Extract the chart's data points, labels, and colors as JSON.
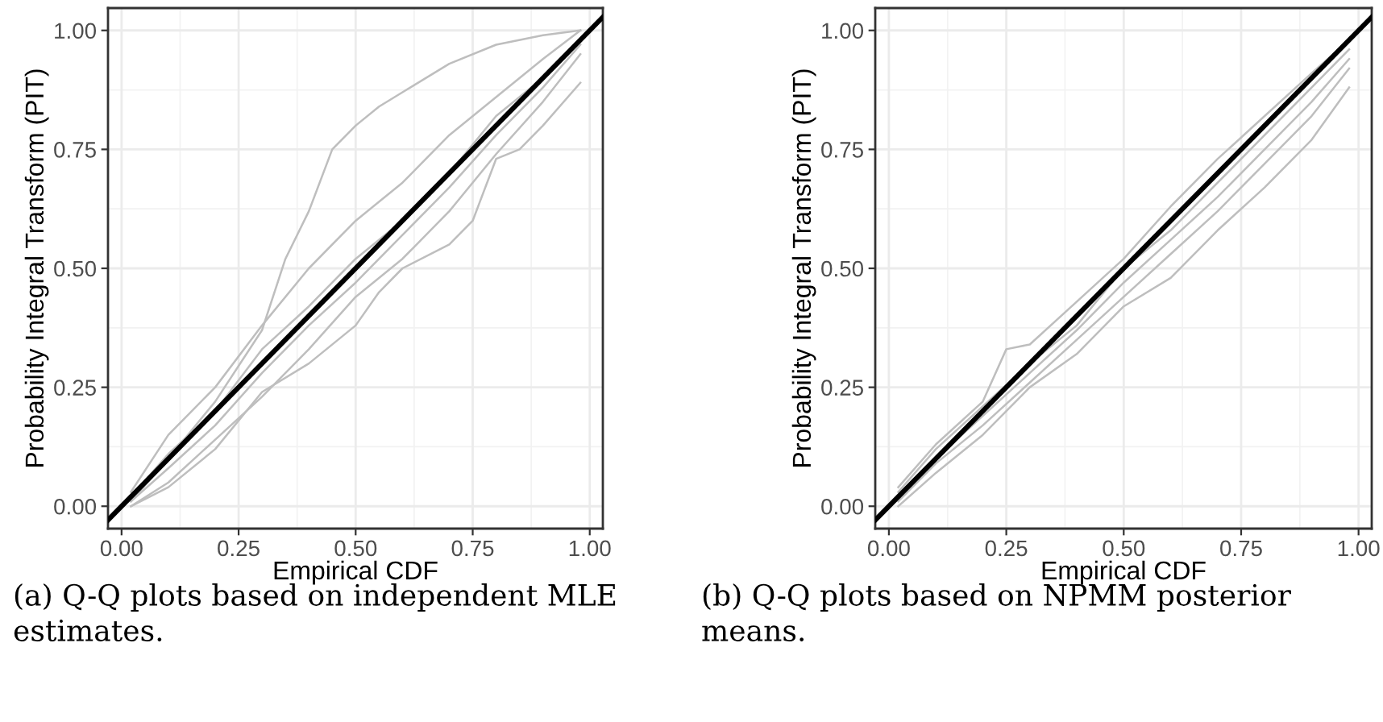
{
  "chart_data": [
    {
      "type": "line",
      "xlabel": "Empirical CDF",
      "ylabel": "Probability Integral Transform (PIT)",
      "annotations": [
        "(a) Q-Q plots based on independent MLE",
        "estimates."
      ],
      "xlim": [
        -0.029,
        1.028
      ],
      "ylim": [
        -0.047,
        1.047
      ],
      "xticks": [
        {
          "value": 0,
          "label": "0.00"
        },
        {
          "value": 0.25,
          "label": "0.25"
        },
        {
          "value": 0.5,
          "label": "0.50"
        },
        {
          "value": 0.75,
          "label": "0.75"
        },
        {
          "value": 1,
          "label": "1.00"
        }
      ],
      "yticks": [
        {
          "value": 0,
          "label": "0.00"
        },
        {
          "value": 0.25,
          "label": "0.25"
        },
        {
          "value": 0.5,
          "label": "0.50"
        },
        {
          "value": 0.75,
          "label": "0.75"
        },
        {
          "value": 1,
          "label": "1.00"
        }
      ],
      "grid": true,
      "marker": "none",
      "line_style": "solid",
      "series": [
        {
          "color": "#bebebe",
          "x": [
            0.02,
            0.1,
            0.2,
            0.3,
            0.35,
            0.4,
            0.45,
            0.5,
            0.55,
            0.6,
            0.7,
            0.8,
            0.9,
            0.98
          ],
          "values": [
            0.01,
            0.1,
            0.22,
            0.37,
            0.52,
            0.62,
            0.75,
            0.8,
            0.84,
            0.87,
            0.93,
            0.97,
            0.99,
            1.0
          ]
        },
        {
          "color": "#bebebe",
          "x": [
            0.02,
            0.1,
            0.2,
            0.3,
            0.4,
            0.5,
            0.55,
            0.6,
            0.7,
            0.75,
            0.8,
            0.85,
            0.9,
            0.98
          ],
          "values": [
            0.0,
            0.04,
            0.12,
            0.24,
            0.3,
            0.38,
            0.45,
            0.5,
            0.55,
            0.6,
            0.73,
            0.75,
            0.8,
            0.89
          ]
        },
        {
          "color": "#bebebe",
          "x": [
            0.02,
            0.1,
            0.2,
            0.3,
            0.4,
            0.5,
            0.6,
            0.7,
            0.8,
            0.9,
            0.98
          ],
          "values": [
            0.03,
            0.15,
            0.25,
            0.38,
            0.5,
            0.6,
            0.68,
            0.78,
            0.86,
            0.94,
            1.0
          ]
        },
        {
          "color": "#bebebe",
          "x": [
            0.02,
            0.1,
            0.2,
            0.3,
            0.4,
            0.5,
            0.6,
            0.7,
            0.8,
            0.9,
            0.98
          ],
          "values": [
            0.0,
            0.05,
            0.14,
            0.23,
            0.33,
            0.44,
            0.52,
            0.62,
            0.74,
            0.85,
            0.95
          ]
        },
        {
          "color": "#bebebe",
          "x": [
            0.02,
            0.1,
            0.2,
            0.3,
            0.4,
            0.5,
            0.6,
            0.7,
            0.8,
            0.9,
            0.98
          ],
          "values": [
            0.02,
            0.11,
            0.2,
            0.33,
            0.42,
            0.52,
            0.6,
            0.7,
            0.82,
            0.9,
            0.98
          ]
        },
        {
          "color": "#bebebe",
          "x": [
            0.02,
            0.1,
            0.2,
            0.3,
            0.4,
            0.5,
            0.6,
            0.7,
            0.8,
            0.9,
            0.98
          ],
          "values": [
            0.01,
            0.08,
            0.17,
            0.28,
            0.38,
            0.47,
            0.57,
            0.67,
            0.78,
            0.88,
            0.97
          ]
        },
        {
          "color": "#000000",
          "x": [
            -0.029,
            1.028
          ],
          "values": [
            -0.029,
            1.028
          ]
        }
      ]
    },
    {
      "type": "line",
      "xlabel": "Empirical CDF",
      "ylabel": "Probability Integral Transform (PIT)",
      "annotations": [
        "(b) Q-Q plots based on NPMM posterior",
        "means."
      ],
      "xlim": [
        -0.029,
        1.028
      ],
      "ylim": [
        -0.047,
        1.047
      ],
      "xticks": [
        {
          "value": 0,
          "label": "0.00"
        },
        {
          "value": 0.25,
          "label": "0.25"
        },
        {
          "value": 0.5,
          "label": "0.50"
        },
        {
          "value": 0.75,
          "label": "0.75"
        },
        {
          "value": 1,
          "label": "1.00"
        }
      ],
      "yticks": [
        {
          "value": 0,
          "label": "0.00"
        },
        {
          "value": 0.25,
          "label": "0.25"
        },
        {
          "value": 0.5,
          "label": "0.50"
        },
        {
          "value": 0.75,
          "label": "0.75"
        },
        {
          "value": 1,
          "label": "1.00"
        }
      ],
      "grid": true,
      "marker": "none",
      "line_style": "solid",
      "series": [
        {
          "color": "#bebebe",
          "x": [
            0.02,
            0.1,
            0.2,
            0.25,
            0.3,
            0.4,
            0.5,
            0.6,
            0.7,
            0.8,
            0.9,
            0.98
          ],
          "values": [
            0.04,
            0.13,
            0.22,
            0.33,
            0.34,
            0.43,
            0.52,
            0.63,
            0.73,
            0.82,
            0.91,
            0.98
          ]
        },
        {
          "color": "#bebebe",
          "x": [
            0.02,
            0.1,
            0.2,
            0.3,
            0.4,
            0.5,
            0.6,
            0.7,
            0.8,
            0.9,
            0.98
          ],
          "values": [
            0.0,
            0.07,
            0.15,
            0.25,
            0.32,
            0.42,
            0.48,
            0.58,
            0.67,
            0.77,
            0.88
          ]
        },
        {
          "color": "#bebebe",
          "x": [
            0.02,
            0.1,
            0.2,
            0.3,
            0.4,
            0.5,
            0.6,
            0.7,
            0.8,
            0.9,
            0.98
          ],
          "values": [
            0.02,
            0.1,
            0.19,
            0.28,
            0.37,
            0.47,
            0.56,
            0.65,
            0.75,
            0.85,
            0.94
          ]
        },
        {
          "color": "#bebebe",
          "x": [
            0.02,
            0.1,
            0.2,
            0.3,
            0.4,
            0.5,
            0.6,
            0.7,
            0.8,
            0.9,
            0.98
          ],
          "values": [
            0.01,
            0.09,
            0.17,
            0.26,
            0.35,
            0.44,
            0.53,
            0.62,
            0.72,
            0.82,
            0.92
          ]
        },
        {
          "color": "#bebebe",
          "x": [
            0.02,
            0.1,
            0.2,
            0.3,
            0.4,
            0.5,
            0.6,
            0.7,
            0.8,
            0.9,
            0.98
          ],
          "values": [
            0.03,
            0.12,
            0.21,
            0.3,
            0.38,
            0.5,
            0.58,
            0.68,
            0.78,
            0.88,
            0.96
          ]
        },
        {
          "color": "#000000",
          "x": [
            -0.029,
            1.028
          ],
          "values": [
            -0.029,
            1.028
          ]
        }
      ]
    }
  ]
}
